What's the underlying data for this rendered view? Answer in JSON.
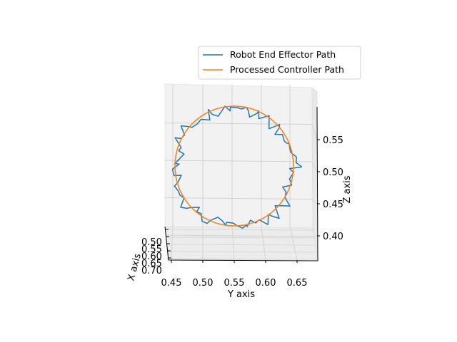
{
  "chart_data": {
    "type": "line",
    "projection": "3d",
    "title": "",
    "xlabel": "X axis",
    "ylabel": "Y axis",
    "zlabel": "Z axis",
    "x_ticks": [
      "0.50",
      "0.55",
      "0.60",
      "0.65",
      "0.70"
    ],
    "y_ticks": [
      "0.45",
      "0.50",
      "0.55",
      "0.60",
      "0.65"
    ],
    "z_ticks": [
      "0.40",
      "0.45",
      "0.50",
      "0.55"
    ],
    "ylim": [
      0.44,
      0.67
    ],
    "zlim": [
      0.37,
      0.59
    ],
    "grid": true,
    "legend_position": "top-right",
    "series": [
      {
        "name": "Robot End Effector Path",
        "color": "#1f77b4",
        "noisy": true,
        "center": {
          "y": 0.55,
          "z": 0.495
        },
        "radius": {
          "y": 0.095,
          "z": 0.087
        }
      },
      {
        "name": "Processed Controller Path",
        "color": "#ff7f0e",
        "noisy": false,
        "center": {
          "y": 0.55,
          "z": 0.495
        },
        "radius": {
          "y": 0.095,
          "z": 0.087
        }
      }
    ]
  }
}
